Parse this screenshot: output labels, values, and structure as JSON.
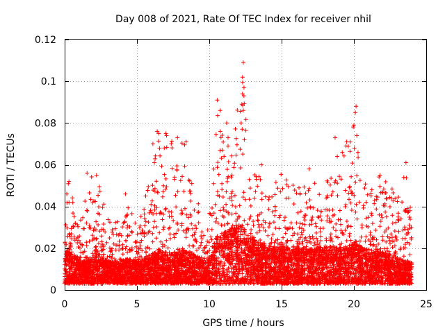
{
  "chart_data": {
    "type": "scatter",
    "title": "Day 008 of 2021, Rate Of TEC Index for receiver nhil",
    "xlabel": "GPS time / hours",
    "ylabel": "ROTI / TECUs",
    "xlim": [
      0,
      25
    ],
    "ylim": [
      0,
      0.12
    ],
    "xticks": [
      0,
      5,
      10,
      15,
      20,
      25
    ],
    "xtick_labels": [
      "0",
      "5",
      "10",
      "15",
      "20",
      "25"
    ],
    "yticks": [
      0,
      0.02,
      0.04,
      0.06,
      0.08,
      0.1,
      0.12
    ],
    "ytick_labels": [
      "0",
      "0.02",
      "0.04",
      "0.06",
      "0.08",
      "0.1",
      "0.12"
    ],
    "grid": true,
    "marker": "+",
    "color": "#ff0000",
    "x_range": [
      0,
      24
    ],
    "typical_range": [
      0.003,
      0.03
    ],
    "envelope": [
      {
        "x": 0.0,
        "base": 0.012,
        "upper": 0.045
      },
      {
        "x": 0.3,
        "base": 0.015,
        "upper": 0.052
      },
      {
        "x": 1.0,
        "base": 0.01,
        "upper": 0.03
      },
      {
        "x": 1.5,
        "base": 0.01,
        "upper": 0.056
      },
      {
        "x": 2.2,
        "base": 0.013,
        "upper": 0.055
      },
      {
        "x": 3.0,
        "base": 0.01,
        "upper": 0.035
      },
      {
        "x": 4.0,
        "base": 0.01,
        "upper": 0.032
      },
      {
        "x": 4.2,
        "base": 0.011,
        "upper": 0.046
      },
      {
        "x": 5.0,
        "base": 0.01,
        "upper": 0.03
      },
      {
        "x": 6.2,
        "base": 0.013,
        "upper": 0.061
      },
      {
        "x": 6.5,
        "base": 0.014,
        "upper": 0.076
      },
      {
        "x": 7.0,
        "base": 0.013,
        "upper": 0.075
      },
      {
        "x": 7.8,
        "base": 0.013,
        "upper": 0.073
      },
      {
        "x": 8.4,
        "base": 0.014,
        "upper": 0.071
      },
      {
        "x": 9.0,
        "base": 0.012,
        "upper": 0.045
      },
      {
        "x": 9.8,
        "base": 0.01,
        "upper": 0.035
      },
      {
        "x": 10.0,
        "base": 0.011,
        "upper": 0.037
      },
      {
        "x": 10.6,
        "base": 0.02,
        "upper": 0.091
      },
      {
        "x": 11.2,
        "base": 0.021,
        "upper": 0.073
      },
      {
        "x": 11.6,
        "base": 0.022,
        "upper": 0.065
      },
      {
        "x": 12.3,
        "base": 0.023,
        "upper": 0.109
      },
      {
        "x": 12.8,
        "base": 0.018,
        "upper": 0.052
      },
      {
        "x": 13.5,
        "base": 0.016,
        "upper": 0.06
      },
      {
        "x": 14.0,
        "base": 0.015,
        "upper": 0.046
      },
      {
        "x": 15.0,
        "base": 0.015,
        "upper": 0.056
      },
      {
        "x": 16.0,
        "base": 0.014,
        "upper": 0.05
      },
      {
        "x": 17.0,
        "base": 0.014,
        "upper": 0.053
      },
      {
        "x": 18.0,
        "base": 0.015,
        "upper": 0.05
      },
      {
        "x": 18.8,
        "base": 0.015,
        "upper": 0.073
      },
      {
        "x": 19.5,
        "base": 0.015,
        "upper": 0.07
      },
      {
        "x": 20.1,
        "base": 0.017,
        "upper": 0.088
      },
      {
        "x": 20.5,
        "base": 0.015,
        "upper": 0.06
      },
      {
        "x": 21.0,
        "base": 0.014,
        "upper": 0.048
      },
      {
        "x": 21.8,
        "base": 0.013,
        "upper": 0.055
      },
      {
        "x": 22.5,
        "base": 0.012,
        "upper": 0.05
      },
      {
        "x": 23.0,
        "base": 0.011,
        "upper": 0.045
      },
      {
        "x": 23.6,
        "base": 0.01,
        "upper": 0.061
      },
      {
        "x": 24.0,
        "base": 0.01,
        "upper": 0.032
      }
    ],
    "notable_points": [
      {
        "x": 12.35,
        "y": 0.109
      },
      {
        "x": 12.3,
        "y": 0.102
      },
      {
        "x": 12.4,
        "y": 0.097
      },
      {
        "x": 12.3,
        "y": 0.094
      },
      {
        "x": 10.55,
        "y": 0.091
      },
      {
        "x": 12.25,
        "y": 0.089
      },
      {
        "x": 20.15,
        "y": 0.088
      },
      {
        "x": 12.35,
        "y": 0.086
      },
      {
        "x": 10.75,
        "y": 0.086
      },
      {
        "x": 20.1,
        "y": 0.085
      },
      {
        "x": 11.2,
        "y": 0.08
      },
      {
        "x": 12.2,
        "y": 0.08
      },
      {
        "x": 20.0,
        "y": 0.079
      },
      {
        "x": 6.4,
        "y": 0.076
      },
      {
        "x": 6.5,
        "y": 0.075
      },
      {
        "x": 7.0,
        "y": 0.075
      },
      {
        "x": 7.05,
        "y": 0.074
      },
      {
        "x": 20.2,
        "y": 0.074
      },
      {
        "x": 7.8,
        "y": 0.073
      },
      {
        "x": 18.7,
        "y": 0.073
      },
      {
        "x": 11.3,
        "y": 0.073
      },
      {
        "x": 19.5,
        "y": 0.071
      },
      {
        "x": 8.4,
        "y": 0.071
      },
      {
        "x": 6.1,
        "y": 0.07
      },
      {
        "x": 19.45,
        "y": 0.069
      },
      {
        "x": 10.9,
        "y": 0.067
      },
      {
        "x": 18.85,
        "y": 0.064
      },
      {
        "x": 23.6,
        "y": 0.061
      },
      {
        "x": 6.2,
        "y": 0.061
      },
      {
        "x": 13.6,
        "y": 0.06
      },
      {
        "x": 16.9,
        "y": 0.058
      },
      {
        "x": 1.55,
        "y": 0.056
      },
      {
        "x": 2.2,
        "y": 0.055
      },
      {
        "x": 21.8,
        "y": 0.055
      },
      {
        "x": 0.3,
        "y": 0.052
      },
      {
        "x": 0.15,
        "y": 0.046
      },
      {
        "x": 4.2,
        "y": 0.046
      }
    ]
  }
}
